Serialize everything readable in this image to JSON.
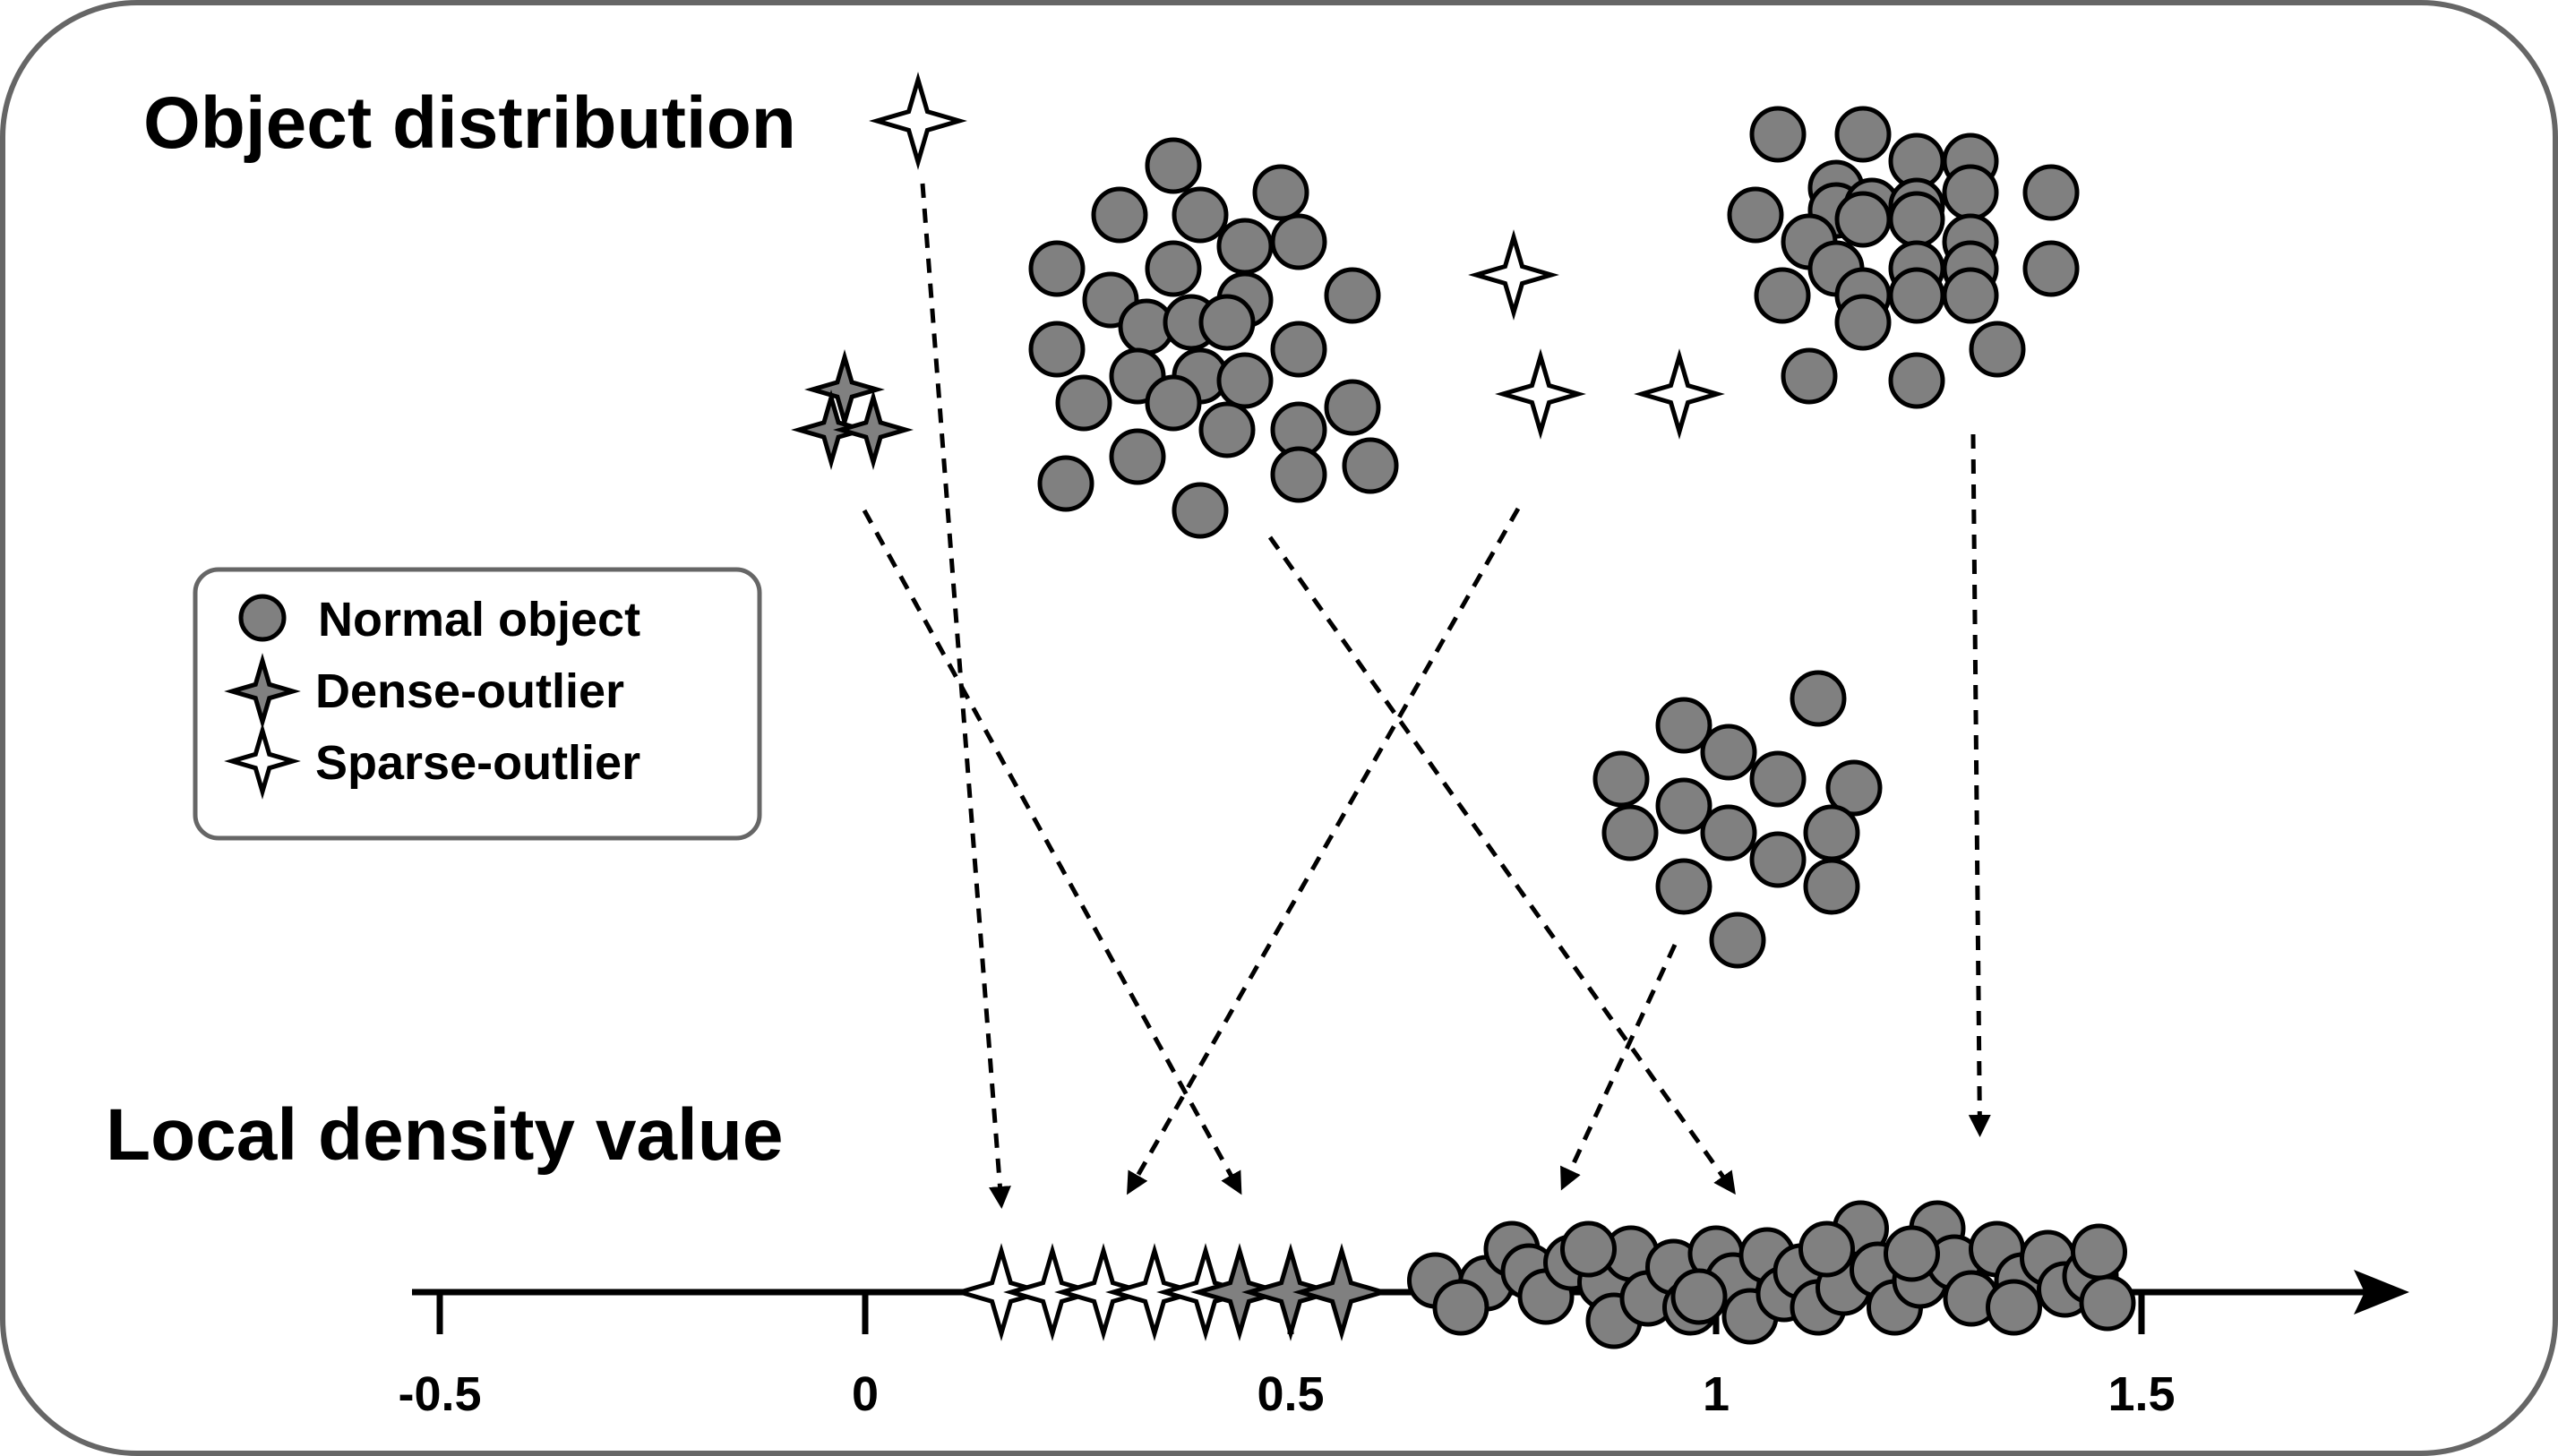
{
  "titles": {
    "object_distribution": "Object distribution",
    "local_density": "Local density value"
  },
  "legend": {
    "normal": "Normal object",
    "dense": "Dense-outlier",
    "sparse": "Sparse-outlier"
  },
  "axis": {
    "range": [
      -0.5,
      1.7
    ],
    "ticks": [
      {
        "value": -0.5,
        "label": "-0.5"
      },
      {
        "value": 0,
        "label": "0"
      },
      {
        "value": 0.5,
        "label": "0.5"
      },
      {
        "value": 1,
        "label": "1"
      },
      {
        "value": 1.5,
        "label": "1.5"
      }
    ]
  },
  "arrow_targets": {
    "legend_sparse_outlier": 0.16,
    "sparse_outlier_pair": 0.31,
    "dense_outlier_group": 0.44,
    "left_cluster": 1.02,
    "middle_cluster": 0.82,
    "right_cluster": 1.31
  },
  "colors": {
    "circle_fill": "#808080",
    "dense_fill": "#808080",
    "sparse_fill": "#ffffff",
    "stroke": "#000000",
    "frame": "#666666"
  }
}
